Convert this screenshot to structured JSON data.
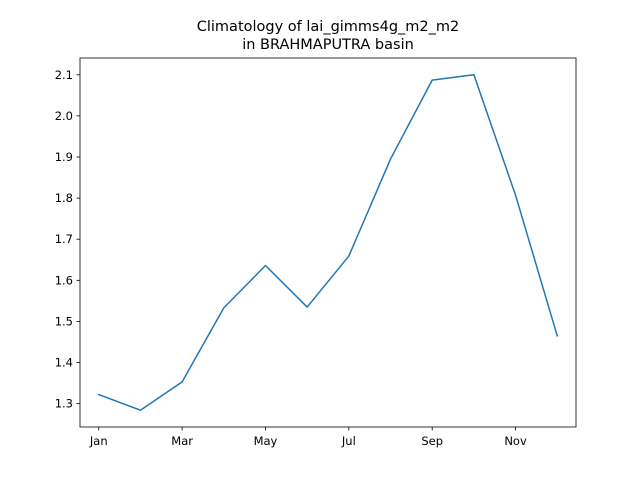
{
  "chart_data": {
    "type": "line",
    "title_line1": "Climatology of lai_gimms4g_m2_m2",
    "title_line2": "in BRAHMAPUTRA basin",
    "xlabel": "",
    "ylabel": "",
    "x": [
      1,
      2,
      3,
      4,
      5,
      6,
      7,
      8,
      9,
      10,
      11,
      12
    ],
    "xticks": [
      {
        "value": 1,
        "label": "Jan"
      },
      {
        "value": 3,
        "label": "Mar"
      },
      {
        "value": 5,
        "label": "May"
      },
      {
        "value": 7,
        "label": "Jul"
      },
      {
        "value": 9,
        "label": "Sep"
      },
      {
        "value": 11,
        "label": "Nov"
      }
    ],
    "yticks": [
      {
        "value": 1.3,
        "label": "1.3"
      },
      {
        "value": 1.4,
        "label": "1.4"
      },
      {
        "value": 1.5,
        "label": "1.5"
      },
      {
        "value": 1.6,
        "label": "1.6"
      },
      {
        "value": 1.7,
        "label": "1.7"
      },
      {
        "value": 1.8,
        "label": "1.8"
      },
      {
        "value": 1.9,
        "label": "1.9"
      },
      {
        "value": 2.0,
        "label": "2.0"
      },
      {
        "value": 2.1,
        "label": "2.1"
      }
    ],
    "series": [
      {
        "values": [
          1.322,
          1.284,
          1.353,
          1.533,
          1.636,
          1.535,
          1.659,
          1.895,
          2.087,
          2.1,
          1.807,
          1.465
        ],
        "color": "#1f77b4"
      }
    ],
    "xlim": [
      0.55,
      12.45
    ],
    "ylim": [
      1.2432,
      2.1408
    ],
    "grid": false,
    "legend": "none"
  }
}
